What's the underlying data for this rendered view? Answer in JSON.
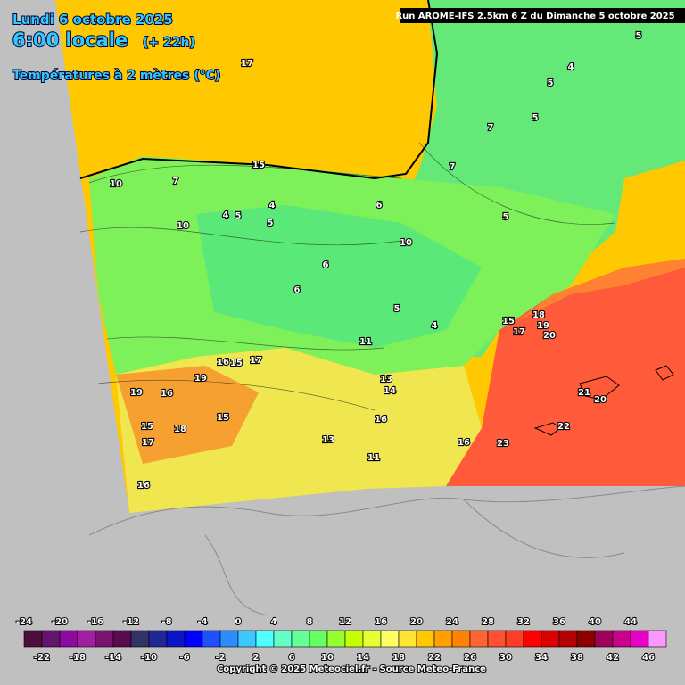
{
  "header": {
    "date": "Lundi 6 octobre 2025",
    "time": "6:00 locale",
    "lead": "(+ 22h)",
    "variable": "Températures à 2 mètres (°C)"
  },
  "run": "Run AROME-IFS 2.5km 6 Z du Dimanche 5 octobre 2025",
  "contour_labels": [
    17,
    15,
    5,
    4,
    5,
    5,
    7,
    7,
    6,
    10,
    5,
    7,
    10,
    10,
    4,
    5,
    4,
    5,
    6,
    6,
    5,
    4,
    15,
    18,
    19,
    20,
    17,
    11,
    16,
    15,
    17,
    19,
    19,
    16,
    13,
    14,
    15,
    18,
    17,
    15,
    16,
    13,
    16,
    23,
    22,
    21,
    20,
    16,
    11
  ],
  "legend": {
    "values": [
      -24,
      -22,
      -20,
      -18,
      -16,
      -14,
      -12,
      -10,
      -8,
      -6,
      -4,
      -2,
      0,
      2,
      4,
      6,
      8,
      10,
      12,
      14,
      16,
      18,
      20,
      22,
      24,
      26,
      28,
      30,
      32,
      34,
      36,
      38,
      40,
      42,
      44,
      46
    ],
    "colors": [
      "#4b0f3c",
      "#64146e",
      "#8c0aa0",
      "#a01ea0",
      "#78146e",
      "#5a0a50",
      "#323264",
      "#1e2896",
      "#0a14c8",
      "#0000ff",
      "#1e50ff",
      "#2d8cff",
      "#3cc8ff",
      "#50ffff",
      "#64ffc8",
      "#64ff96",
      "#64ff64",
      "#96ff32",
      "#c8ff00",
      "#e6ff32",
      "#ffff64",
      "#ffe632",
      "#ffc800",
      "#ffa000",
      "#ff8200",
      "#ff6432",
      "#ff5032",
      "#ff3c28",
      "#ff0000",
      "#dc0000",
      "#b40000",
      "#8c0000",
      "#a0005a",
      "#c8008c",
      "#e600c8",
      "#ff96ff"
    ]
  },
  "copyright": "Copyright © 2025 Meteociel.fr - Source Meteo-France"
}
